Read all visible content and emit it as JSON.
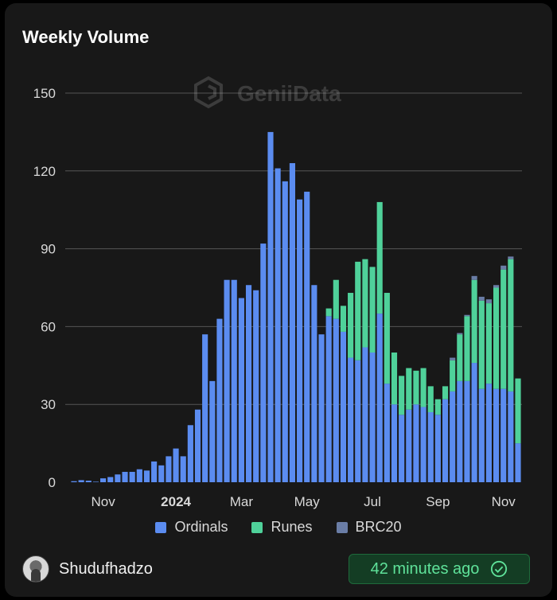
{
  "title": "Weekly Volume",
  "watermark": "GeniiData",
  "footer": {
    "username": "Shudufhadzo",
    "time_ago": "42 minutes ago"
  },
  "colors": {
    "ordinals": "#5b8cf0",
    "runes": "#4fd19a",
    "brc20": "#6a7da6",
    "grid": "#555555",
    "text": "#d9d9d9"
  },
  "chart_data": {
    "type": "bar",
    "stacked": true,
    "ylim": [
      0,
      150
    ],
    "yticks": [
      0,
      30,
      60,
      90,
      120,
      150
    ],
    "grid": true,
    "legend_position": "bottom",
    "x_tick_labels": [
      {
        "label": "Nov",
        "index": 4,
        "bold": false
      },
      {
        "label": "2024",
        "index": 14,
        "bold": true
      },
      {
        "label": "Mar",
        "index": 23,
        "bold": false
      },
      {
        "label": "May",
        "index": 32,
        "bold": false
      },
      {
        "label": "Jul",
        "index": 41,
        "bold": false
      },
      {
        "label": "Sep",
        "index": 50,
        "bold": false
      },
      {
        "label": "Nov",
        "index": 59,
        "bold": false
      }
    ],
    "series": [
      {
        "name": "Ordinals",
        "color": "#5b8cf0",
        "values": [
          0.4,
          0.8,
          0.6,
          0.2,
          1.5,
          2,
          3,
          4,
          4,
          5,
          4.5,
          8,
          6.5,
          10,
          13,
          10,
          22,
          28,
          57,
          39,
          63,
          78,
          78,
          71,
          76,
          74,
          92,
          135,
          121,
          116,
          123,
          109,
          112,
          76,
          57,
          64,
          63,
          58,
          48,
          47,
          52,
          50,
          65,
          38,
          30,
          26,
          28,
          30,
          29,
          27,
          26,
          32,
          35,
          39,
          39,
          46,
          36,
          38,
          36,
          36,
          35,
          15
        ]
      },
      {
        "name": "Runes",
        "color": "#4fd19a",
        "values": [
          0,
          0,
          0,
          0,
          0,
          0,
          0,
          0,
          0,
          0,
          0,
          0,
          0,
          0,
          0,
          0,
          0,
          0,
          0,
          0,
          0,
          0,
          0,
          0,
          0,
          0,
          0,
          0,
          0,
          0,
          0,
          0,
          0,
          0,
          0,
          3,
          15,
          10,
          25,
          38,
          34,
          33,
          43,
          35,
          20,
          15,
          16,
          13,
          15,
          10,
          6,
          5,
          12,
          18,
          25,
          32,
          34,
          31,
          39,
          46,
          51,
          25
        ]
      },
      {
        "name": "BRC20",
        "color": "#6a7da6",
        "values": [
          0,
          0,
          0,
          0,
          0,
          0,
          0,
          0,
          0,
          0,
          0,
          0,
          0,
          0,
          0,
          0,
          0,
          0,
          0,
          0,
          0,
          0,
          0,
          0,
          0,
          0,
          0,
          0,
          0,
          0,
          0,
          0,
          0,
          0,
          0,
          0,
          0,
          0,
          0,
          0,
          0,
          0,
          0,
          0,
          0,
          0,
          0,
          0,
          0,
          0,
          0,
          0,
          1,
          0.5,
          0.5,
          1.5,
          1.5,
          1.5,
          1,
          1.5,
          1,
          0
        ]
      }
    ]
  }
}
